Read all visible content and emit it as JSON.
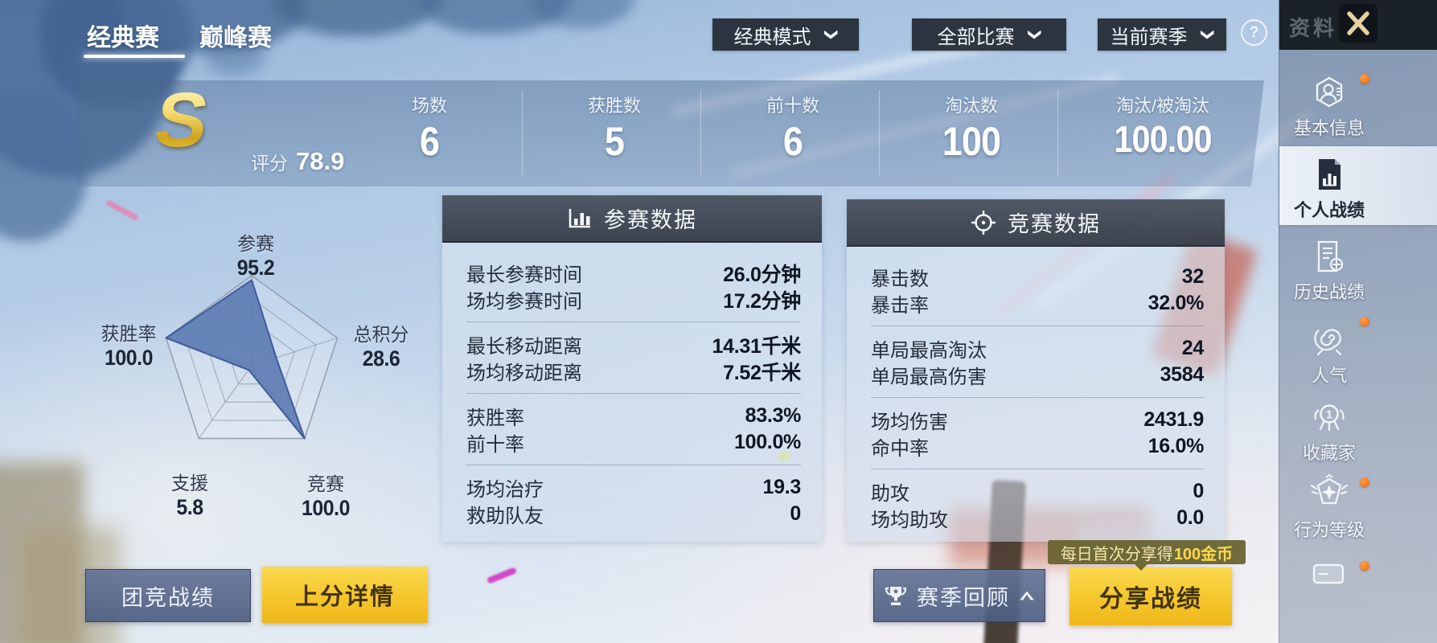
{
  "header": {
    "tabs": [
      {
        "label": "经典赛",
        "active": true
      },
      {
        "label": "巅峰赛",
        "active": false
      }
    ],
    "filters": [
      {
        "label": "经典模式"
      },
      {
        "label": "全部比赛"
      },
      {
        "label": "当前赛季"
      }
    ],
    "help": "?"
  },
  "summary": {
    "grade": "S",
    "score_label": "评分",
    "score_value": "78.9",
    "stats": [
      {
        "label": "场数",
        "value": "6"
      },
      {
        "label": "获胜数",
        "value": "5"
      },
      {
        "label": "前十数",
        "value": "6"
      },
      {
        "label": "淘汰数",
        "value": "100"
      },
      {
        "label": "淘汰/被淘汰",
        "value": "100.00"
      }
    ]
  },
  "chart_data": {
    "type": "radar",
    "axes": [
      "参赛",
      "总积分",
      "竞赛",
      "支援",
      "获胜率"
    ],
    "values": [
      95.2,
      28.6,
      100.0,
      5.8,
      100.0
    ],
    "values_text": [
      "95.2",
      "28.6",
      "100.0",
      "5.8",
      "100.0"
    ],
    "max": 100,
    "rings": 4,
    "fill_color": "#5c7ab2",
    "stroke_color": "#3e5c98",
    "grid_color": "#96a1b0"
  },
  "panels": [
    {
      "title": "参赛数据",
      "icon": "bar-chart-icon",
      "groups": [
        {
          "rows": [
            {
              "label": "最长参赛时间",
              "value": "26.0分钟"
            },
            {
              "label": "场均参赛时间",
              "value": "17.2分钟"
            }
          ]
        },
        {
          "rows": [
            {
              "label": "最长移动距离",
              "value": "14.31千米"
            },
            {
              "label": "场均移动距离",
              "value": "7.52千米"
            }
          ]
        },
        {
          "rows": [
            {
              "label": "获胜率",
              "value": "83.3%"
            },
            {
              "label": "前十率",
              "value": "100.0%"
            }
          ]
        },
        {
          "rows": [
            {
              "label": "场均治疗",
              "value": "19.3"
            },
            {
              "label": "救助队友",
              "value": "0"
            }
          ]
        }
      ]
    },
    {
      "title": "竞赛数据",
      "icon": "scope-icon",
      "groups": [
        {
          "rows": [
            {
              "label": "暴击数",
              "value": "32"
            },
            {
              "label": "暴击率",
              "value": "32.0%"
            }
          ]
        },
        {
          "rows": [
            {
              "label": "单局最高淘汰",
              "value": "24"
            },
            {
              "label": "单局最高伤害",
              "value": "3584"
            }
          ]
        },
        {
          "rows": [
            {
              "label": "场均伤害",
              "value": "2431.9"
            },
            {
              "label": "命中率",
              "value": "16.0%"
            }
          ]
        },
        {
          "rows": [
            {
              "label": "助攻",
              "value": "0"
            },
            {
              "label": "场均助攻",
              "value": "0.0"
            }
          ]
        }
      ]
    }
  ],
  "footer": {
    "team_button": "团竞战绩",
    "rank_detail_button": "上分详情",
    "season_review_button": "赛季回顾",
    "share_button": "分享战绩",
    "share_tooltip_prefix": "每日首次分享得",
    "share_tooltip_highlight": "100金币"
  },
  "sidebar": {
    "title": "资料",
    "items": [
      {
        "label": "基本信息",
        "badge": true
      },
      {
        "label": "个人战绩",
        "selected": true
      },
      {
        "label": "历史战绩"
      },
      {
        "label": "人气",
        "badge": true
      },
      {
        "label": "收藏家"
      },
      {
        "label": "行为等级",
        "badge": true
      }
    ]
  },
  "colors": {
    "accent_gold": "#f3bd1d",
    "slate_button": "#5a6a94",
    "badge_orange": "#e8761f",
    "panel_header": "#3d454f",
    "radar_fill": "#5c7ab2"
  }
}
